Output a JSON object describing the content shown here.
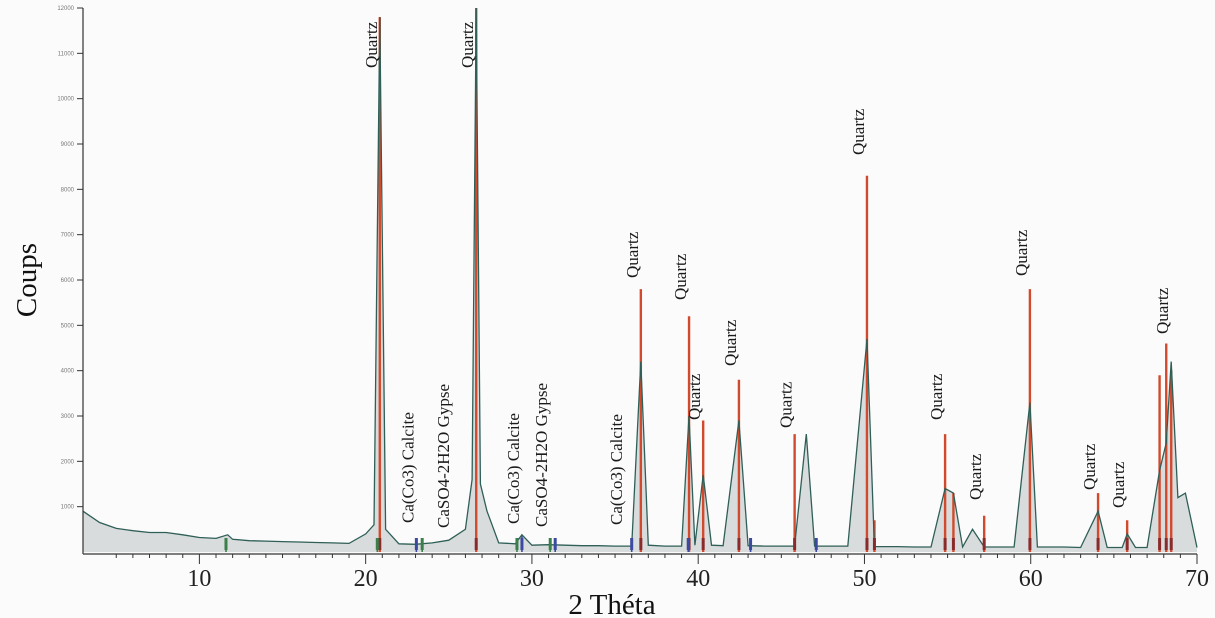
{
  "chart_data": {
    "type": "line",
    "xlabel": "2 Théta",
    "ylabel": "Coups",
    "xlim": [
      3,
      70
    ],
    "ylim": [
      0,
      12000
    ],
    "grid": false,
    "x_ticks": [
      10,
      20,
      30,
      40,
      50,
      60,
      70
    ],
    "y_ticks": [
      1000,
      2000,
      3000,
      4000,
      5000,
      6000,
      7000,
      8000,
      9000,
      10000,
      11000,
      12000
    ],
    "y_tick_labels": [
      "1000",
      "2000",
      "3000",
      "4000",
      "5000",
      "6000",
      "7000",
      "8000",
      "9000",
      "10000",
      "11000",
      "12000"
    ],
    "colors": {
      "reference_lines": "#d24a2d",
      "measured_pattern": "#2f5f57",
      "fill": "#d8dcdc",
      "quartz_marks": "#8b2a2a",
      "calcite_marks": "#3b4aa0",
      "gypsum_marks": "#3b7f4a"
    },
    "series": [
      {
        "type": "line",
        "x": [
          3.0,
          4,
          5,
          6,
          7,
          8,
          9,
          10,
          11,
          11.7,
          12,
          13,
          14,
          15,
          16,
          17,
          18,
          19,
          20,
          20.5,
          20.85,
          21.2,
          22,
          23,
          24,
          25,
          26,
          26.4,
          26.65,
          26.9,
          27.3,
          27.5,
          28,
          29,
          29.4,
          30,
          31,
          32,
          33,
          34,
          35,
          36,
          36.55,
          37,
          38,
          39,
          39.45,
          39.8,
          40.3,
          40.8,
          41.5,
          42.45,
          43,
          44,
          45,
          45.8,
          46.5,
          47,
          48,
          49,
          50.15,
          50.6,
          51,
          52,
          53,
          54,
          54.85,
          55.35,
          55.9,
          56.5,
          57.2,
          57.8,
          59,
          59.95,
          60.4,
          61,
          62,
          63,
          64.05,
          64.6,
          65.5,
          65.8,
          66.3,
          67,
          67.75,
          68.15,
          68.45,
          68.85,
          69.3,
          70
        ],
        "values": [
          900,
          650,
          520,
          470,
          430,
          430,
          380,
          320,
          300,
          380,
          280,
          250,
          240,
          230,
          220,
          210,
          200,
          190,
          400,
          600,
          11800,
          500,
          180,
          170,
          200,
          260,
          500,
          1600,
          12000,
          1500,
          900,
          700,
          200,
          180,
          380,
          150,
          160,
          150,
          140,
          140,
          130,
          130,
          4200,
          150,
          130,
          130,
          3000,
          150,
          1700,
          150,
          140,
          2900,
          140,
          130,
          130,
          130,
          2600,
          130,
          130,
          130,
          4700,
          120,
          120,
          120,
          110,
          110,
          1400,
          1300,
          110,
          500,
          110,
          110,
          110,
          3300,
          110,
          110,
          110,
          100,
          900,
          100,
          100,
          400,
          100,
          100,
          1800,
          2400,
          4200,
          1200,
          1300,
          100
        ]
      },
      {
        "type": "reference",
        "name": "Quartz",
        "x": [
          20.85,
          26.65,
          36.55,
          39.45,
          40.3,
          42.45,
          45.8,
          50.15,
          50.6,
          54.85,
          55.35,
          57.2,
          59.95,
          64.05,
          65.8,
          67.75,
          68.15,
          68.45
        ],
        "values": [
          11800,
          12000,
          5800,
          5200,
          2900,
          3800,
          2600,
          8300,
          700,
          2600,
          1300,
          800,
          5800,
          1300,
          700,
          3900,
          4600,
          4000
        ]
      },
      {
        "type": "reference",
        "name": "Calcite",
        "x": [
          23.05,
          29.4,
          31.4,
          36.0,
          39.4,
          43.15,
          47.1
        ],
        "values": [
          150,
          350,
          80,
          70,
          80,
          90,
          120
        ]
      },
      {
        "type": "reference",
        "name": "Gypse",
        "x": [
          11.6,
          20.7,
          23.4,
          29.1,
          31.1
        ],
        "values": [
          280,
          220,
          120,
          150,
          160
        ]
      }
    ],
    "annotations": [
      {
        "text": "Quartz",
        "x": 20.85
      },
      {
        "text": "Quartz",
        "x": 26.65
      },
      {
        "text": "Ca(Co3) Calcite",
        "x": 23.05
      },
      {
        "text": "CaSO4-2H2O Gypse",
        "x": 25.2
      },
      {
        "text": "Ca(Co3) Calcite",
        "x": 29.4
      },
      {
        "text": "CaSO4-2H2O Gypse",
        "x": 31.1
      },
      {
        "text": "Ca(Co3) Calcite",
        "x": 35.6
      },
      {
        "text": "Quartz",
        "x": 36.55
      },
      {
        "text": "Quartz",
        "x": 39.45
      },
      {
        "text": "Quartz",
        "x": 40.3
      },
      {
        "text": "Quartz",
        "x": 42.45
      },
      {
        "text": "Quartz",
        "x": 45.8
      },
      {
        "text": "Quartz",
        "x": 50.15
      },
      {
        "text": "Quartz",
        "x": 54.85
      },
      {
        "text": "Quartz",
        "x": 57.2
      },
      {
        "text": "Quartz",
        "x": 59.95
      },
      {
        "text": "Quartz",
        "x": 64.05
      },
      {
        "text": "Quartz",
        "x": 65.8
      },
      {
        "text": "Quartz",
        "x": 68.45
      }
    ]
  }
}
